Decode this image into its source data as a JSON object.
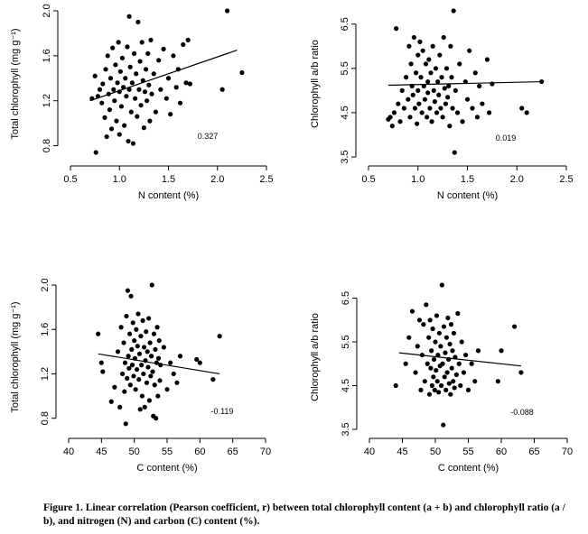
{
  "chart_data": [
    {
      "type": "scatter",
      "id": "tl",
      "xlabel": "N content (%)",
      "ylabel": "Total chlorophyll (mg g⁻¹)",
      "xlim": [
        0.5,
        2.5
      ],
      "ylim": [
        0.7,
        2.0
      ],
      "xticks": [
        "0.5",
        "1.0",
        "1.5",
        "2.0",
        "2.5"
      ],
      "yticks": [
        "0.8",
        "1.2",
        "1.6",
        "2.0"
      ],
      "r_label": "0.327",
      "trend": {
        "x": [
          0.7,
          2.2
        ],
        "y": [
          1.2,
          1.65
        ]
      },
      "points": [
        [
          0.72,
          1.22
        ],
        [
          0.75,
          1.42
        ],
        [
          0.76,
          0.74
        ],
        [
          0.78,
          1.24
        ],
        [
          0.8,
          1.3
        ],
        [
          0.82,
          1.18
        ],
        [
          0.83,
          1.35
        ],
        [
          0.85,
          1.05
        ],
        [
          0.86,
          1.48
        ],
        [
          0.87,
          0.88
        ],
        [
          0.88,
          1.6
        ],
        [
          0.89,
          1.26
        ],
        [
          0.9,
          1.12
        ],
        [
          0.91,
          1.4
        ],
        [
          0.92,
          0.95
        ],
        [
          0.93,
          1.67
        ],
        [
          0.94,
          1.3
        ],
        [
          0.95,
          1.2
        ],
        [
          0.96,
          1.52
        ],
        [
          0.97,
          1.02
        ],
        [
          0.98,
          1.36
        ],
        [
          0.99,
          1.72
        ],
        [
          1.0,
          0.9
        ],
        [
          1.0,
          1.28
        ],
        [
          1.01,
          1.46
        ],
        [
          1.02,
          1.15
        ],
        [
          1.03,
          1.58
        ],
        [
          1.04,
          1.32
        ],
        [
          1.05,
          0.98
        ],
        [
          1.06,
          1.4
        ],
        [
          1.07,
          1.24
        ],
        [
          1.08,
          1.68
        ],
        [
          1.09,
          0.84
        ],
        [
          1.1,
          1.95
        ],
        [
          1.1,
          1.3
        ],
        [
          1.11,
          1.5
        ],
        [
          1.12,
          1.1
        ],
        [
          1.13,
          1.36
        ],
        [
          1.14,
          0.82
        ],
        [
          1.15,
          1.62
        ],
        [
          1.16,
          1.22
        ],
        [
          1.17,
          1.44
        ],
        [
          1.18,
          1.06
        ],
        [
          1.19,
          1.9
        ],
        [
          1.2,
          1.3
        ],
        [
          1.21,
          1.55
        ],
        [
          1.22,
          1.16
        ],
        [
          1.23,
          1.72
        ],
        [
          1.24,
          1.38
        ],
        [
          1.25,
          0.96
        ],
        [
          1.26,
          1.28
        ],
        [
          1.27,
          1.48
        ],
        [
          1.28,
          1.2
        ],
        [
          1.29,
          1.62
        ],
        [
          1.3,
          1.34
        ],
        [
          1.31,
          1.02
        ],
        [
          1.32,
          1.74
        ],
        [
          1.33,
          1.26
        ],
        [
          1.35,
          1.44
        ],
        [
          1.37,
          1.1
        ],
        [
          1.4,
          1.56
        ],
        [
          1.42,
          1.3
        ],
        [
          1.45,
          1.66
        ],
        [
          1.48,
          1.22
        ],
        [
          1.5,
          1.4
        ],
        [
          1.52,
          1.08
        ],
        [
          1.55,
          1.6
        ],
        [
          1.58,
          1.32
        ],
        [
          1.6,
          1.48
        ],
        [
          1.62,
          1.18
        ],
        [
          1.65,
          1.7
        ],
        [
          1.68,
          1.36
        ],
        [
          1.7,
          1.74
        ],
        [
          1.72,
          1.35
        ],
        [
          2.05,
          1.3
        ],
        [
          2.1,
          2.0
        ],
        [
          2.25,
          1.45
        ]
      ]
    },
    {
      "type": "scatter",
      "id": "tr",
      "xlabel": "N content (%)",
      "ylabel": "Chlorophyll a/b ratio",
      "xlim": [
        0.5,
        2.5
      ],
      "ylim": [
        3.5,
        6.8
      ],
      "xticks": [
        "0.5",
        "1.0",
        "1.5",
        "2.0",
        "2.5"
      ],
      "yticks": [
        "3.5",
        "4.5",
        "5.5",
        "6.5"
      ],
      "r_label": "0.019",
      "trend": {
        "x": [
          0.7,
          2.25
        ],
        "y": [
          5.12,
          5.2
        ]
      },
      "points": [
        [
          0.7,
          4.35
        ],
        [
          0.72,
          4.4
        ],
        [
          0.74,
          4.2
        ],
        [
          0.76,
          4.5
        ],
        [
          0.78,
          6.4
        ],
        [
          0.8,
          4.7
        ],
        [
          0.82,
          4.3
        ],
        [
          0.84,
          5.0
        ],
        [
          0.86,
          4.6
        ],
        [
          0.88,
          5.3
        ],
        [
          0.9,
          4.8
        ],
        [
          0.91,
          6.0
        ],
        [
          0.92,
          4.4
        ],
        [
          0.93,
          5.6
        ],
        [
          0.94,
          5.1
        ],
        [
          0.95,
          4.9
        ],
        [
          0.96,
          6.2
        ],
        [
          0.97,
          4.6
        ],
        [
          0.98,
          5.4
        ],
        [
          0.99,
          4.25
        ],
        [
          1.0,
          5.8
        ],
        [
          1.0,
          5.0
        ],
        [
          1.01,
          4.7
        ],
        [
          1.02,
          6.1
        ],
        [
          1.03,
          5.3
        ],
        [
          1.04,
          4.5
        ],
        [
          1.05,
          5.9
        ],
        [
          1.06,
          5.1
        ],
        [
          1.07,
          4.8
        ],
        [
          1.08,
          5.6
        ],
        [
          1.09,
          4.4
        ],
        [
          1.1,
          5.2
        ],
        [
          1.1,
          4.95
        ],
        [
          1.11,
          5.7
        ],
        [
          1.12,
          4.6
        ],
        [
          1.13,
          5.4
        ],
        [
          1.14,
          4.3
        ],
        [
          1.15,
          6.0
        ],
        [
          1.16,
          5.0
        ],
        [
          1.17,
          4.75
        ],
        [
          1.18,
          5.5
        ],
        [
          1.19,
          4.5
        ],
        [
          1.2,
          5.2
        ],
        [
          1.21,
          4.9
        ],
        [
          1.22,
          5.8
        ],
        [
          1.23,
          4.6
        ],
        [
          1.24,
          5.3
        ],
        [
          1.25,
          4.4
        ],
        [
          1.26,
          6.2
        ],
        [
          1.27,
          5.05
        ],
        [
          1.28,
          4.7
        ],
        [
          1.29,
          5.5
        ],
        [
          1.3,
          4.85
        ],
        [
          1.31,
          5.1
        ],
        [
          1.32,
          4.2
        ],
        [
          1.33,
          6.0
        ],
        [
          1.34,
          5.3
        ],
        [
          1.35,
          4.6
        ],
        [
          1.36,
          6.8
        ],
        [
          1.37,
          3.6
        ],
        [
          1.38,
          5.0
        ],
        [
          1.4,
          4.5
        ],
        [
          1.42,
          5.6
        ],
        [
          1.45,
          4.3
        ],
        [
          1.48,
          5.2
        ],
        [
          1.5,
          4.8
        ],
        [
          1.52,
          5.9
        ],
        [
          1.55,
          4.6
        ],
        [
          1.58,
          5.4
        ],
        [
          1.6,
          4.4
        ],
        [
          1.62,
          5.1
        ],
        [
          1.65,
          4.7
        ],
        [
          1.7,
          5.7
        ],
        [
          1.72,
          4.5
        ],
        [
          1.75,
          5.15
        ],
        [
          2.05,
          4.6
        ],
        [
          2.1,
          4.5
        ],
        [
          2.25,
          5.2
        ]
      ]
    },
    {
      "type": "scatter",
      "id": "bl",
      "xlabel": "C content (%)",
      "ylabel": "Total chlorophyll (mg g⁻¹)",
      "xlim": [
        40,
        70
      ],
      "ylim": [
        0.7,
        2.0
      ],
      "xticks": [
        "40",
        "45",
        "50",
        "55",
        "60",
        "65",
        "70"
      ],
      "yticks": [
        "0.8",
        "1.2",
        "1.6",
        "2.0"
      ],
      "r_label": "-0.119",
      "trend": {
        "x": [
          44.5,
          63
        ],
        "y": [
          1.38,
          1.2
        ]
      },
      "points": [
        [
          44.5,
          1.56
        ],
        [
          45.0,
          1.3
        ],
        [
          45.2,
          1.22
        ],
        [
          46.5,
          0.95
        ],
        [
          47.0,
          1.08
        ],
        [
          47.5,
          1.4
        ],
        [
          47.8,
          0.9
        ],
        [
          48.0,
          1.62
        ],
        [
          48.2,
          1.2
        ],
        [
          48.4,
          1.48
        ],
        [
          48.5,
          1.04
        ],
        [
          48.6,
          1.3
        ],
        [
          48.7,
          0.75
        ],
        [
          48.8,
          1.72
        ],
        [
          48.9,
          1.16
        ],
        [
          49.0,
          1.95
        ],
        [
          49.1,
          1.36
        ],
        [
          49.2,
          1.25
        ],
        [
          49.3,
          1.56
        ],
        [
          49.4,
          1.1
        ],
        [
          49.5,
          1.9
        ],
        [
          49.6,
          1.42
        ],
        [
          49.7,
          1.28
        ],
        [
          49.8,
          1.66
        ],
        [
          49.9,
          1.18
        ],
        [
          50.0,
          1.5
        ],
        [
          50.1,
          1.34
        ],
        [
          50.2,
          1.06
        ],
        [
          50.3,
          1.6
        ],
        [
          50.4,
          1.24
        ],
        [
          50.5,
          1.45
        ],
        [
          50.6,
          1.74
        ],
        [
          50.7,
          1.15
        ],
        [
          50.8,
          1.38
        ],
        [
          50.9,
          0.88
        ],
        [
          51.0,
          1.54
        ],
        [
          51.1,
          1.28
        ],
        [
          51.2,
          1.0
        ],
        [
          51.3,
          1.68
        ],
        [
          51.4,
          1.2
        ],
        [
          51.5,
          1.44
        ],
        [
          51.6,
          0.9
        ],
        [
          51.7,
          1.32
        ],
        [
          51.8,
          1.58
        ],
        [
          51.9,
          1.12
        ],
        [
          52.0,
          1.4
        ],
        [
          52.1,
          1.26
        ],
        [
          52.2,
          1.7
        ],
        [
          52.3,
          0.96
        ],
        [
          52.4,
          1.48
        ],
        [
          52.5,
          1.18
        ],
        [
          52.6,
          1.36
        ],
        [
          52.7,
          2.0
        ],
        [
          52.8,
          1.22
        ],
        [
          52.9,
          0.82
        ],
        [
          53.0,
          1.56
        ],
        [
          53.1,
          1.1
        ],
        [
          53.2,
          1.42
        ],
        [
          53.3,
          0.8
        ],
        [
          53.4,
          1.3
        ],
        [
          53.5,
          1.62
        ],
        [
          53.6,
          1.0
        ],
        [
          53.7,
          1.34
        ],
        [
          53.8,
          1.5
        ],
        [
          53.9,
          1.14
        ],
        [
          54.0,
          1.28
        ],
        [
          54.5,
          1.44
        ],
        [
          55.0,
          1.06
        ],
        [
          55.5,
          1.3
        ],
        [
          56.0,
          1.2
        ],
        [
          56.5,
          1.12
        ],
        [
          57.0,
          1.36
        ],
        [
          59.5,
          1.33
        ],
        [
          60.0,
          1.3
        ],
        [
          62.0,
          1.15
        ],
        [
          63.0,
          1.54
        ]
      ]
    },
    {
      "type": "scatter",
      "id": "br",
      "xlabel": "C content (%)",
      "ylabel": "Chlorophyll a/b ratio",
      "xlim": [
        40,
        70
      ],
      "ylim": [
        3.5,
        6.8
      ],
      "xticks": [
        "40",
        "45",
        "50",
        "55",
        "60",
        "65",
        "70"
      ],
      "yticks": [
        "3.5",
        "4.5",
        "5.5",
        "6.5"
      ],
      "r_label": "-0.088",
      "trend": {
        "x": [
          44.5,
          63
        ],
        "y": [
          5.25,
          4.95
        ]
      },
      "points": [
        [
          44.0,
          4.5
        ],
        [
          45.5,
          5.0
        ],
        [
          46.0,
          5.6
        ],
        [
          46.5,
          6.2
        ],
        [
          47.0,
          4.8
        ],
        [
          47.3,
          5.4
        ],
        [
          47.6,
          6.0
        ],
        [
          47.8,
          4.4
        ],
        [
          48.0,
          5.2
        ],
        [
          48.2,
          5.9
        ],
        [
          48.4,
          4.6
        ],
        [
          48.6,
          6.35
        ],
        [
          48.8,
          5.0
        ],
        [
          49.0,
          5.6
        ],
        [
          49.1,
          4.3
        ],
        [
          49.2,
          6.0
        ],
        [
          49.3,
          4.9
        ],
        [
          49.4,
          5.3
        ],
        [
          49.5,
          4.5
        ],
        [
          49.6,
          5.8
        ],
        [
          49.7,
          4.7
        ],
        [
          49.8,
          5.1
        ],
        [
          49.9,
          4.4
        ],
        [
          50.0,
          5.5
        ],
        [
          50.1,
          4.85
        ],
        [
          50.2,
          6.1
        ],
        [
          50.3,
          4.6
        ],
        [
          50.4,
          5.2
        ],
        [
          50.5,
          4.35
        ],
        [
          50.6,
          5.7
        ],
        [
          50.7,
          4.95
        ],
        [
          50.8,
          5.4
        ],
        [
          50.9,
          4.5
        ],
        [
          51.0,
          6.8
        ],
        [
          51.1,
          5.0
        ],
        [
          51.2,
          3.6
        ],
        [
          51.3,
          5.85
        ],
        [
          51.4,
          4.7
        ],
        [
          51.5,
          5.25
        ],
        [
          51.6,
          4.4
        ],
        [
          51.7,
          5.6
        ],
        [
          51.8,
          4.8
        ],
        [
          51.9,
          6.05
        ],
        [
          52.0,
          5.1
        ],
        [
          52.1,
          4.55
        ],
        [
          52.2,
          5.45
        ],
        [
          52.3,
          4.3
        ],
        [
          52.4,
          5.9
        ],
        [
          52.5,
          4.9
        ],
        [
          52.6,
          5.3
        ],
        [
          52.7,
          4.6
        ],
        [
          52.8,
          5.7
        ],
        [
          52.9,
          4.45
        ],
        [
          53.0,
          5.15
        ],
        [
          53.2,
          4.75
        ],
        [
          53.4,
          6.15
        ],
        [
          53.6,
          5.0
        ],
        [
          53.8,
          4.5
        ],
        [
          54.0,
          5.5
        ],
        [
          54.3,
          4.8
        ],
        [
          54.6,
          5.2
        ],
        [
          55.0,
          4.4
        ],
        [
          55.5,
          5.0
        ],
        [
          56.0,
          4.6
        ],
        [
          56.5,
          5.3
        ],
        [
          59.5,
          4.6
        ],
        [
          60.0,
          5.3
        ],
        [
          62.0,
          5.85
        ],
        [
          63.0,
          4.8
        ]
      ]
    }
  ],
  "caption": "Figure 1. Linear correlation (Pearson coefficient, r) between total chlorophyll content (a + b) and chlorophyll ratio (a / b), and nitrogen (N) and carbon (C) content (%)."
}
